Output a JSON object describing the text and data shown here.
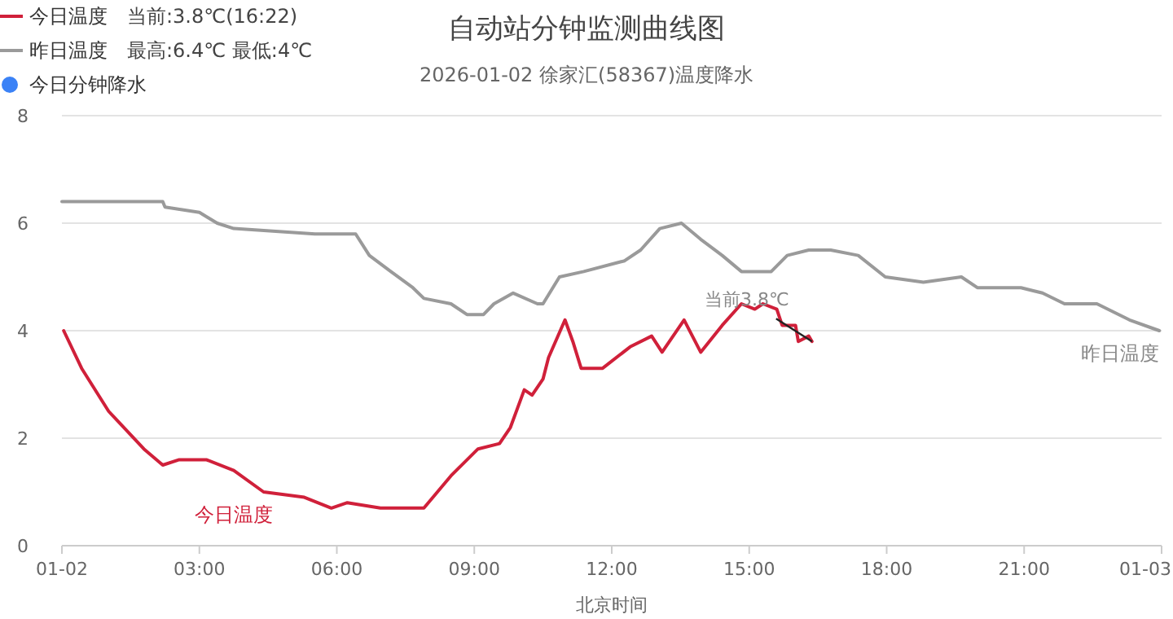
{
  "chart_data": {
    "type": "line",
    "title": "自动站分钟监测曲线图",
    "subtitle": "2026-01-02 徐家汇(58367)温度降水",
    "xlabel": "北京时间",
    "xlim": [
      0,
      24
    ],
    "xticks": [
      {
        "value": 0,
        "label": "01-02"
      },
      {
        "value": 3,
        "label": "03:00"
      },
      {
        "value": 6,
        "label": "06:00"
      },
      {
        "value": 9,
        "label": "09:00"
      },
      {
        "value": 12,
        "label": "12:00"
      },
      {
        "value": 15,
        "label": "15:00"
      },
      {
        "value": 18,
        "label": "18:00"
      },
      {
        "value": 21,
        "label": "21:00"
      },
      {
        "value": 24,
        "label": "01-03"
      }
    ],
    "ylim": [
      0,
      8
    ],
    "yticks": [
      0,
      2,
      4,
      6,
      8
    ],
    "grid": "y",
    "legend": "top left",
    "series": [
      {
        "name": "今日温度",
        "color": "#d0203a",
        "x": [
          0.04,
          0.43,
          1.02,
          1.79,
          2.2,
          2.56,
          3.15,
          3.75,
          4.4,
          5.29,
          5.88,
          6.23,
          6.95,
          7.18,
          7.9,
          8.49,
          9.08,
          9.55,
          9.79,
          10.09,
          10.26,
          10.5,
          10.62,
          10.98,
          11.15,
          11.33,
          11.8,
          12.4,
          12.87,
          13.1,
          13.58,
          13.94,
          14.41,
          14.83,
          15.12,
          15.3,
          15.6,
          15.72,
          16.01,
          16.07,
          16.3,
          16.37
        ],
        "values": [
          4.0,
          3.3,
          2.5,
          1.8,
          1.5,
          1.6,
          1.6,
          1.4,
          1.0,
          0.9,
          0.7,
          0.8,
          0.7,
          0.7,
          0.7,
          1.3,
          1.8,
          1.9,
          2.2,
          2.9,
          2.8,
          3.1,
          3.5,
          4.2,
          3.8,
          3.3,
          3.3,
          3.7,
          3.9,
          3.6,
          4.2,
          3.6,
          4.1,
          4.5,
          4.4,
          4.5,
          4.4,
          4.1,
          4.1,
          3.8,
          3.9,
          3.8
        ]
      },
      {
        "name": "昨日温度",
        "color": "#9a9a9a",
        "x": [
          0.0,
          2.2,
          2.25,
          3.0,
          3.39,
          3.75,
          5.52,
          6.41,
          6.71,
          7.18,
          7.66,
          7.9,
          8.49,
          8.84,
          9.2,
          9.43,
          9.85,
          10.38,
          10.5,
          10.86,
          11.39,
          12.28,
          12.63,
          13.05,
          13.52,
          13.94,
          14.41,
          14.83,
          15.48,
          15.83,
          16.3,
          16.78,
          17.38,
          17.97,
          18.8,
          19.63,
          19.98,
          20.93,
          21.4,
          21.88,
          22.59,
          23.3,
          23.95
        ],
        "values": [
          6.4,
          6.4,
          6.3,
          6.2,
          6.0,
          5.9,
          5.8,
          5.8,
          5.4,
          5.1,
          4.8,
          4.6,
          4.5,
          4.3,
          4.3,
          4.5,
          4.7,
          4.5,
          4.5,
          5.0,
          5.1,
          5.3,
          5.5,
          5.9,
          6.0,
          5.7,
          5.4,
          5.1,
          5.1,
          5.4,
          5.5,
          5.5,
          5.4,
          5.0,
          4.9,
          5.0,
          4.8,
          4.8,
          4.7,
          4.5,
          4.5,
          4.2,
          4.0
        ]
      },
      {
        "name": "今日分钟降水",
        "color": "#3b82f6",
        "type": "scatter"
      }
    ],
    "annotations": [
      "当前:3.8℃(16:22)",
      "最高:6.4℃ 最低:4℃",
      {
        "text": "当前3.8℃",
        "x": 16.37,
        "y": 3.8
      }
    ]
  }
}
